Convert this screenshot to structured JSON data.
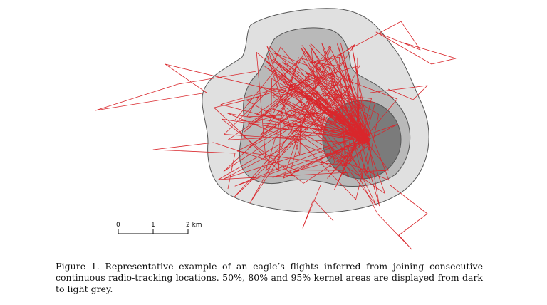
{
  "figure": {
    "map": {
      "kernel_areas": [
        {
          "percent": "95%",
          "shade": "#e0e0e0"
        },
        {
          "percent": "80%",
          "shade": "#b9b9b9"
        },
        {
          "percent": "50%",
          "shade": "#7b7b7b"
        }
      ],
      "track_color": "#d9262b",
      "outline_color": "#555555"
    },
    "scale_bar": {
      "tick_0": "0",
      "tick_1": "1",
      "tick_2": "2 km"
    },
    "caption": {
      "label": "Figure 1.",
      "text": "Representative example of an eagle’s flights inferred from joining consecutive continuous radio-tracking locations. 50%, 80% and 95% kernel areas are displayed from dark to light grey."
    }
  }
}
